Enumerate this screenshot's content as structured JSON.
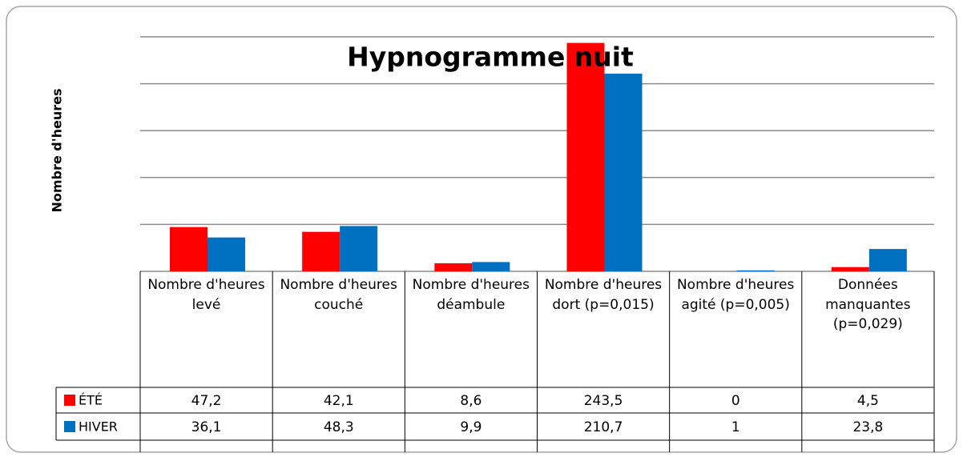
{
  "chart_data": {
    "type": "bar",
    "title": "Hypnogramme nuit",
    "y_label": "Nombre d'heures",
    "categories": [
      "Nombre d'heures levé",
      "Nombre d'heures couché",
      "Nombre d'heures déambule",
      "Nombre d'heures dort (p=0,015)",
      "Nombre d'heures agité (p=0,005)",
      "Données manquantes (p=0,029)"
    ],
    "series": [
      {
        "name": "ÉTÉ",
        "color": "#ff0000",
        "values": [
          47.2,
          42.1,
          8.6,
          243.5,
          0,
          4.5
        ],
        "value_labels": [
          "47,2",
          "42,1",
          "8,6",
          "243,5",
          "0",
          "4,5"
        ]
      },
      {
        "name": "HIVER",
        "color": "#0070c0",
        "values": [
          36.1,
          48.3,
          9.9,
          210.7,
          1,
          23.8
        ],
        "value_labels": [
          "36,1",
          "48,3",
          "9,9",
          "210,7",
          "1",
          "23,8"
        ]
      }
    ],
    "ylim": [
      0,
      250
    ],
    "yticks": [
      0,
      50,
      100,
      150,
      200,
      250
    ],
    "grid": true
  }
}
